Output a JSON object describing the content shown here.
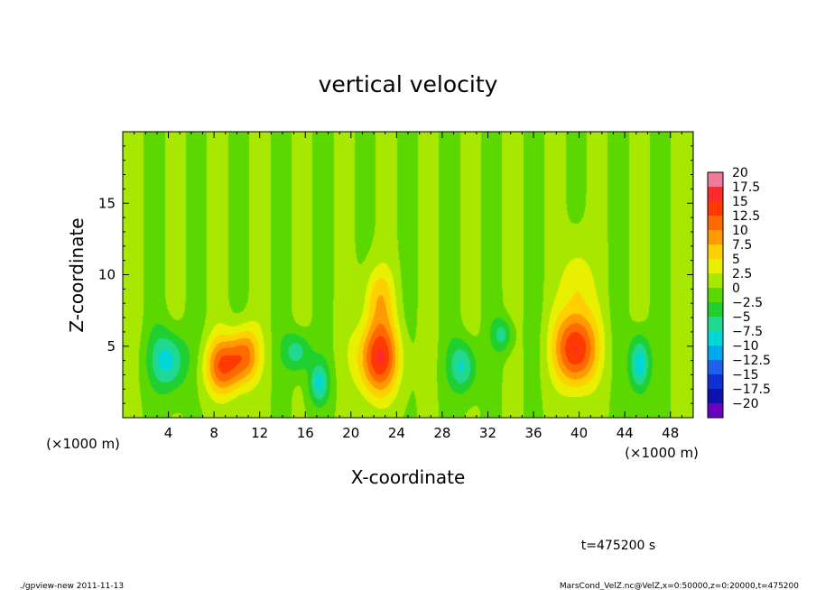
{
  "chart_data": {
    "type": "heatmap",
    "title": "vertical velocity",
    "xlabel": "X-coordinate",
    "ylabel": "Z-coordinate",
    "x_unit_label": "(×1000 m)",
    "y_unit_label": "(×1000 m)",
    "xlim": [
      0,
      50
    ],
    "ylim": [
      0,
      20
    ],
    "x_ticks": [
      4,
      8,
      12,
      16,
      20,
      24,
      28,
      32,
      36,
      40,
      44,
      48
    ],
    "y_ticks": [
      5,
      10,
      15
    ],
    "colorbar_levels": [
      20,
      17.5,
      15,
      12.5,
      10,
      7.5,
      5,
      2.5,
      0,
      -2.5,
      -5,
      -7.5,
      -10,
      -12.5,
      -15,
      -17.5,
      -20
    ],
    "colorbar_colors": [
      "#f07a9a",
      "#ff2b2b",
      "#ff3a00",
      "#ff6a00",
      "#ff9a00",
      "#ffd000",
      "#e8f000",
      "#a8e800",
      "#5ad800",
      "#20d030",
      "#20d890",
      "#00d8d8",
      "#00a8f0",
      "#2060f0",
      "#1030d0",
      "#1010b0",
      "#6a00c0"
    ],
    "features": [
      {
        "x": 4.0,
        "z": 4.0,
        "w": -9,
        "sx": 1.6,
        "sz": 2.1
      },
      {
        "x": 8.8,
        "z": 3.6,
        "w": 12,
        "sx": 1.6,
        "sz": 2.0
      },
      {
        "x": 10.7,
        "z": 4.4,
        "w": 10,
        "sx": 1.3,
        "sz": 2.0
      },
      {
        "x": 15.3,
        "z": 4.6,
        "w": -7,
        "sx": 1.2,
        "sz": 1.4
      },
      {
        "x": 17.2,
        "z": 2.4,
        "w": -8,
        "sx": 0.9,
        "sz": 1.5
      },
      {
        "x": 22.4,
        "z": 4.2,
        "w": 15,
        "sx": 1.8,
        "sz": 2.6
      },
      {
        "x": 22.4,
        "z": 8.5,
        "w": 6,
        "sx": 1.4,
        "sz": 2.2
      },
      {
        "x": 29.8,
        "z": 3.6,
        "w": -8,
        "sx": 1.2,
        "sz": 1.8
      },
      {
        "x": 33.3,
        "z": 5.8,
        "w": -6,
        "sx": 0.9,
        "sz": 1.2
      },
      {
        "x": 39.7,
        "z": 4.8,
        "w": 16,
        "sx": 1.8,
        "sz": 2.6
      },
      {
        "x": 39.8,
        "z": 9.5,
        "w": 5,
        "sx": 1.3,
        "sz": 2.5
      },
      {
        "x": 45.3,
        "z": 3.8,
        "w": -10,
        "sx": 0.9,
        "sz": 2.0
      }
    ]
  },
  "footer": {
    "time_label": "t=475200 s",
    "program": "./gpview-new  2011-11-13",
    "source": "MarsCond_VelZ.nc@VelZ,x=0:50000,z=0:20000,t=475200"
  }
}
